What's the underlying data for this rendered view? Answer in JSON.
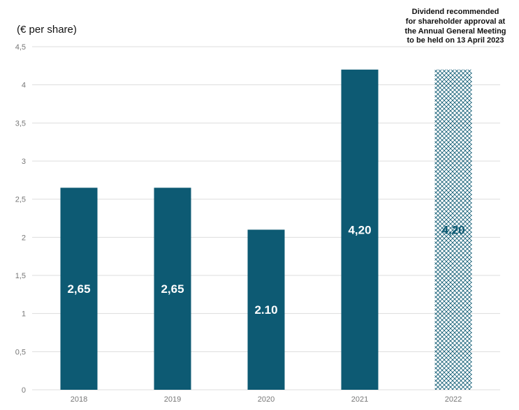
{
  "chart_data": {
    "type": "bar",
    "unit_label": "(€ per share)",
    "annotation": [
      "Dividend recommended",
      "for shareholder approval at",
      "the Annual General Meeting",
      "to be held on 13 April 2023"
    ],
    "categories": [
      "2018",
      "2019",
      "2020",
      "2021",
      "2022"
    ],
    "values": [
      2.65,
      2.65,
      2.1,
      4.2,
      4.2
    ],
    "value_labels": [
      "2,65",
      "2,65",
      "2.10",
      "4,20",
      "4,20"
    ],
    "hatched": [
      false,
      false,
      false,
      false,
      true
    ],
    "ylim": [
      0,
      4.5
    ],
    "y_ticks": [
      {
        "value": 0,
        "label": "0"
      },
      {
        "value": 0.5,
        "label": "0,5"
      },
      {
        "value": 1,
        "label": "1"
      },
      {
        "value": 1.5,
        "label": "1,5"
      },
      {
        "value": 2,
        "label": "2"
      },
      {
        "value": 2.5,
        "label": "2,5"
      },
      {
        "value": 3,
        "label": "3"
      },
      {
        "value": 3.5,
        "label": "3,5"
      },
      {
        "value": 4,
        "label": "4"
      },
      {
        "value": 4.5,
        "label": "4,5"
      }
    ],
    "grid": true,
    "colors": {
      "bar": "#0d5a73",
      "hatch": "#0d5a73",
      "grid": "#dddddd",
      "bar_label": "#ffffff",
      "hatched_bar_label": "#0d5a73"
    }
  }
}
